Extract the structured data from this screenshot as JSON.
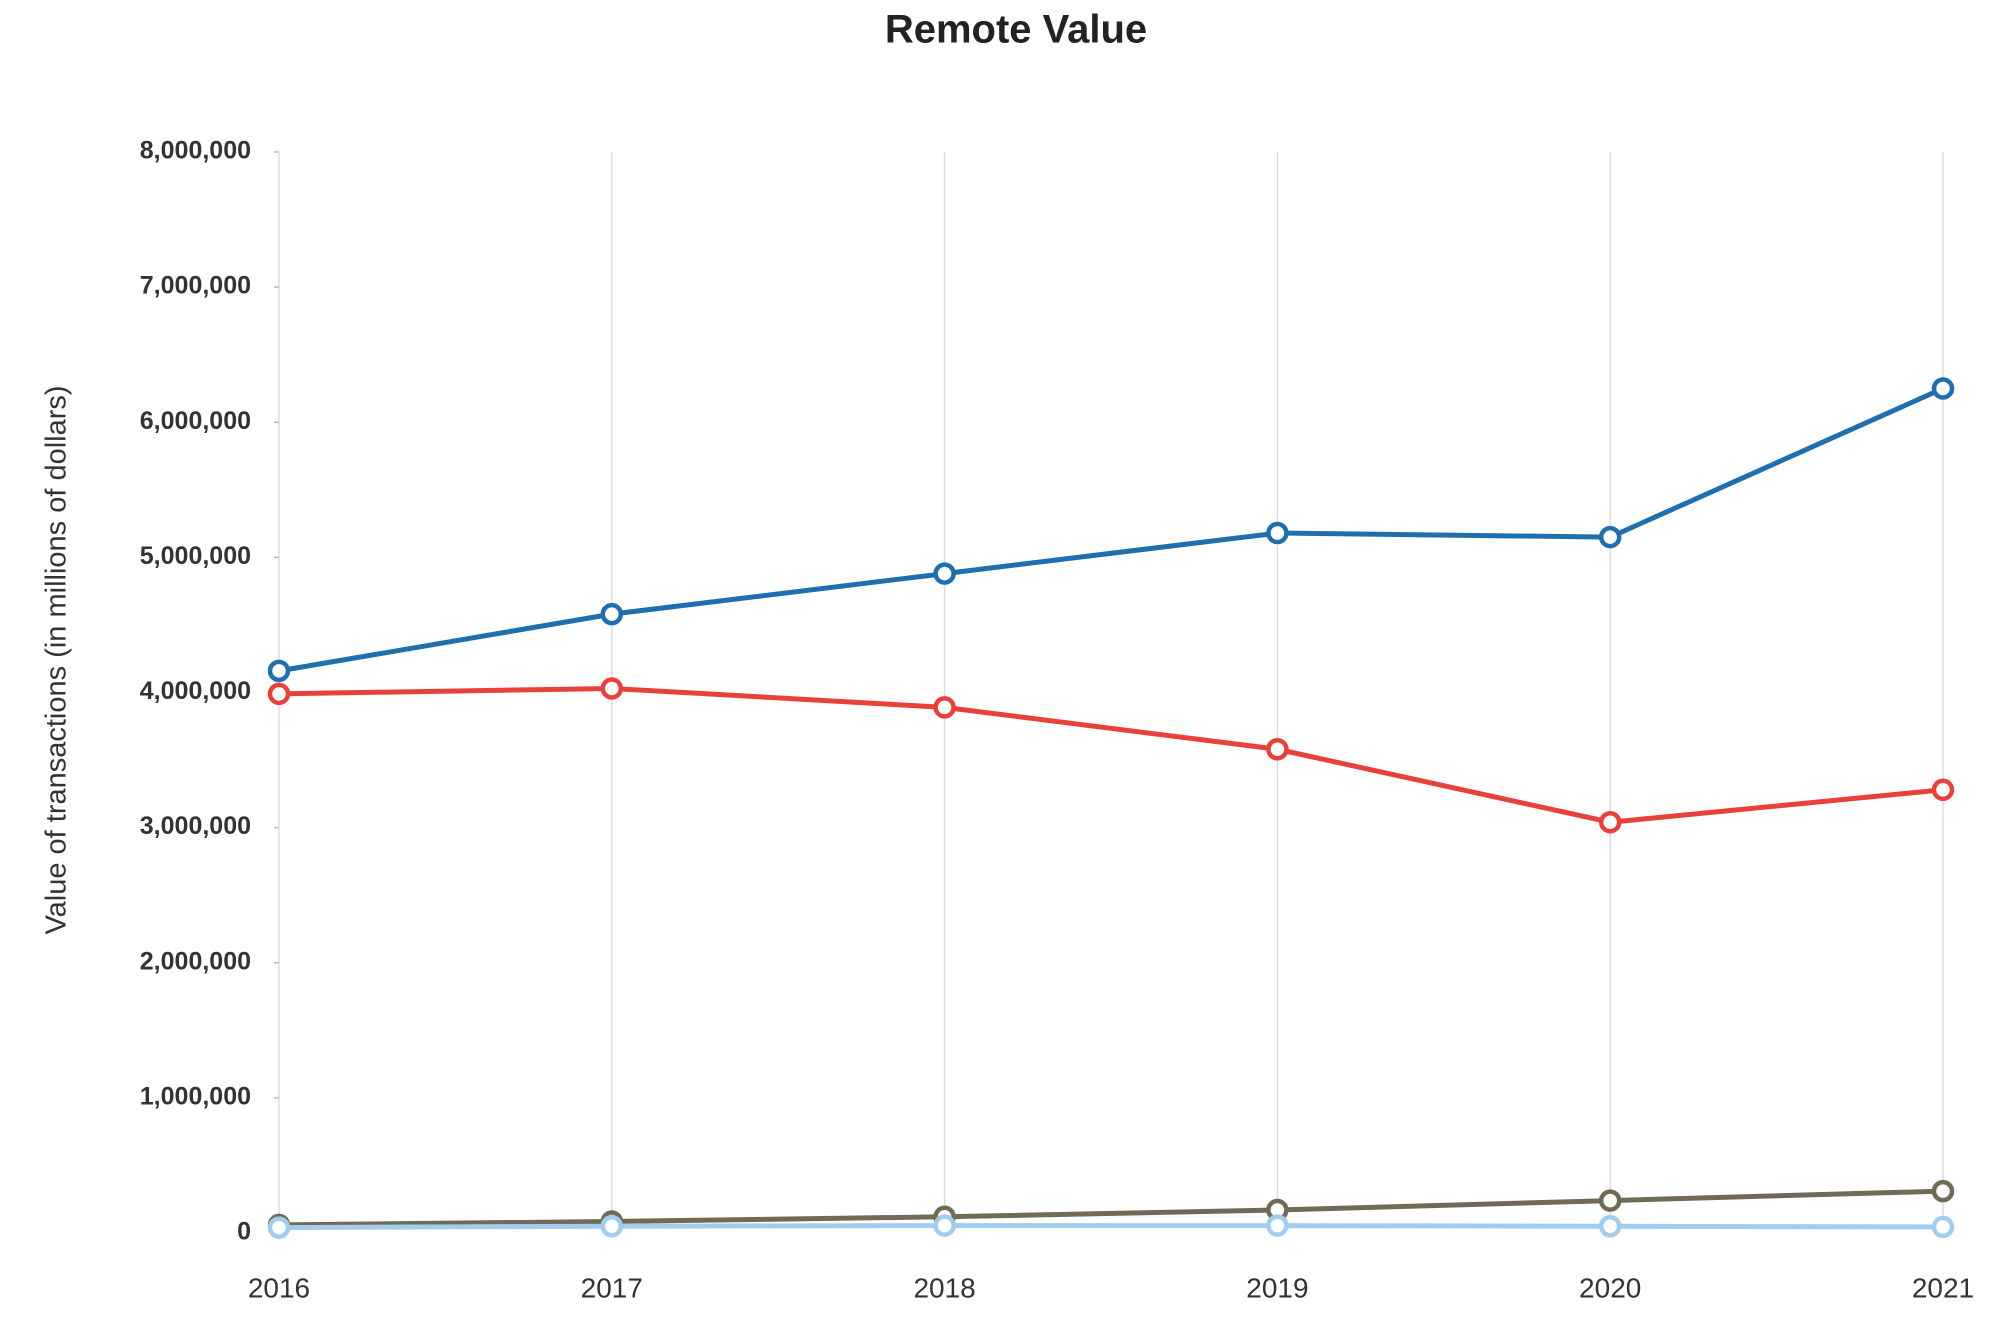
{
  "chart_data": {
    "type": "line",
    "title": "Remote Value",
    "y_label": "Value of transactions (in millions of dollars)",
    "categories": [
      "2016",
      "2017",
      "2018",
      "2019",
      "2020",
      "2021"
    ],
    "series": [
      {
        "color": "#1f6fae",
        "values": [
          4160000,
          4580000,
          4880000,
          5180000,
          5150000,
          6250000
        ]
      },
      {
        "color": "#e8413b",
        "values": [
          3990000,
          4030000,
          3890000,
          3580000,
          3040000,
          3280000
        ]
      },
      {
        "color": "#716a55",
        "values": [
          60000,
          85000,
          120000,
          170000,
          240000,
          310000
        ]
      },
      {
        "color": "#a3cdee",
        "values": [
          40000,
          50000,
          55000,
          55000,
          50000,
          45000
        ]
      }
    ],
    "ylim": [
      0,
      8000000
    ],
    "yticks": [
      0,
      {
        "value": 1000000,
        "label": "1,000,000"
      },
      {
        "value": 2000000,
        "label": "2,000,000"
      },
      {
        "value": 3000000,
        "label": "3,000,000"
      },
      {
        "value": 4000000,
        "label": "4,000,000"
      },
      {
        "value": 5000000,
        "label": "5,000,000"
      },
      {
        "value": 6000000,
        "label": "6,000,000"
      },
      {
        "value": 7000000,
        "label": "7,000,000"
      },
      {
        "value": 8000000,
        "label": "8,000,000"
      }
    ],
    "grid": "x"
  }
}
